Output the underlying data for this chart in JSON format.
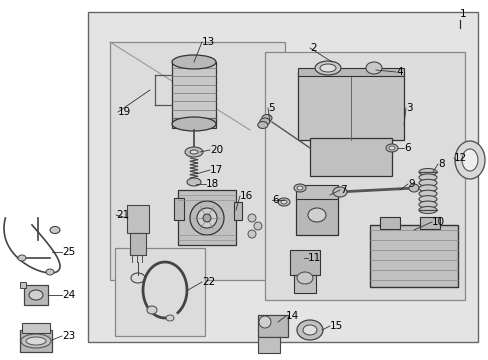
{
  "fig_width": 4.89,
  "fig_height": 3.6,
  "dpi": 100,
  "bg": "#ffffff",
  "shade": "#e0e0e0",
  "shade2": "#d8d8d8",
  "lc": "#444444",
  "lc2": "#888888"
}
